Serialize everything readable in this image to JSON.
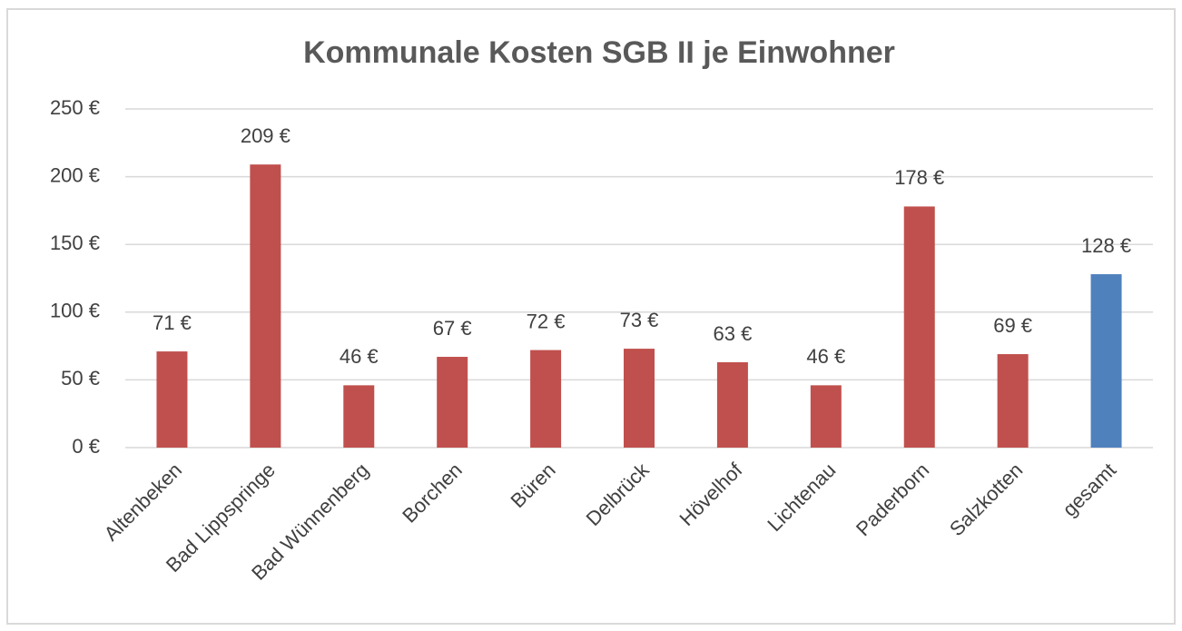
{
  "chart_data": {
    "type": "bar",
    "title": "Kommunale  Kosten SGB II je Einwohner",
    "categories": [
      "Altenbeken",
      "Bad Lippspringe",
      "Bad Wünnenberg",
      "Borchen",
      "Büren",
      "Delbrück",
      "Hövelhof",
      "Lichtenau",
      "Paderborn",
      "Salzkotten",
      "gesamt"
    ],
    "values": [
      71,
      209,
      46,
      67,
      72,
      73,
      63,
      46,
      178,
      69,
      128
    ],
    "value_labels": [
      "71 €",
      "209 €",
      "46 €",
      "67 €",
      "72 €",
      "73 €",
      "63 €",
      "46 €",
      "178 €",
      "69 €",
      "128 €"
    ],
    "colors": [
      "#c0504d",
      "#c0504d",
      "#c0504d",
      "#c0504d",
      "#c0504d",
      "#c0504d",
      "#c0504d",
      "#c0504d",
      "#c0504d",
      "#c0504d",
      "#4f81bd"
    ],
    "ylim": [
      0,
      250
    ],
    "yticks": [
      {
        "value": 0,
        "label": "0 €"
      },
      {
        "value": 50,
        "label": "50 €"
      },
      {
        "value": 100,
        "label": "100 €"
      },
      {
        "value": 150,
        "label": "150 €"
      },
      {
        "value": 200,
        "label": "200 €"
      },
      {
        "value": 250,
        "label": "250 €"
      }
    ],
    "grid": true
  }
}
